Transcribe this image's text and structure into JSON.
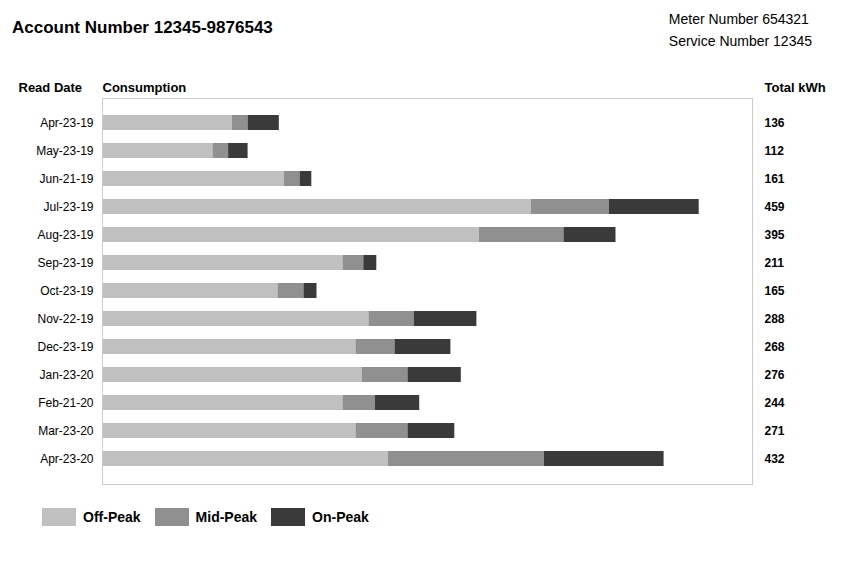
{
  "chart_data": {
    "type": "bar",
    "title": "Account Number 12345-9876543",
    "annotations": [
      "Meter Number 654321",
      "Service Number 12345",
      "Total kWh"
    ],
    "xlabel": "Consumption",
    "ylabel": "Read Date",
    "orientation": "horizontal",
    "stacked": true,
    "categories": [
      "Apr-23-20",
      "Mar-23-20",
      "Feb-21-20",
      "Jan-23-20",
      "Dec-23-19",
      "Nov-22-19",
      "Oct-23-19",
      "Sep-23-19",
      "Aug-23-19",
      "Jul-23-19",
      "Jun-21-19",
      "May-23-19",
      "Apr-23-19"
    ],
    "series": [
      {
        "name": "Off-Peak",
        "color": "#c0c0c0",
        "values": [
          220,
          195,
          185,
          200,
          195,
          205,
          135,
          185,
          290,
          330,
          140,
          85,
          100
        ]
      },
      {
        "name": "Mid-Peak",
        "color": "#909090",
        "values": [
          120,
          40,
          25,
          35,
          30,
          35,
          20,
          16,
          65,
          60,
          12,
          12,
          12
        ]
      },
      {
        "name": "On-Peak",
        "color": "#3a3a3a",
        "values": [
          92,
          36,
          34,
          41,
          43,
          48,
          10,
          10,
          40,
          69,
          9,
          15,
          24
        ]
      }
    ],
    "totals": [
      432,
      271,
      244,
      276,
      268,
      288,
      165,
      211,
      395,
      459,
      161,
      112,
      136
    ],
    "xlim": [
      0,
      500
    ],
    "tick_labels": "y",
    "grid": false,
    "legend": "bottom"
  }
}
